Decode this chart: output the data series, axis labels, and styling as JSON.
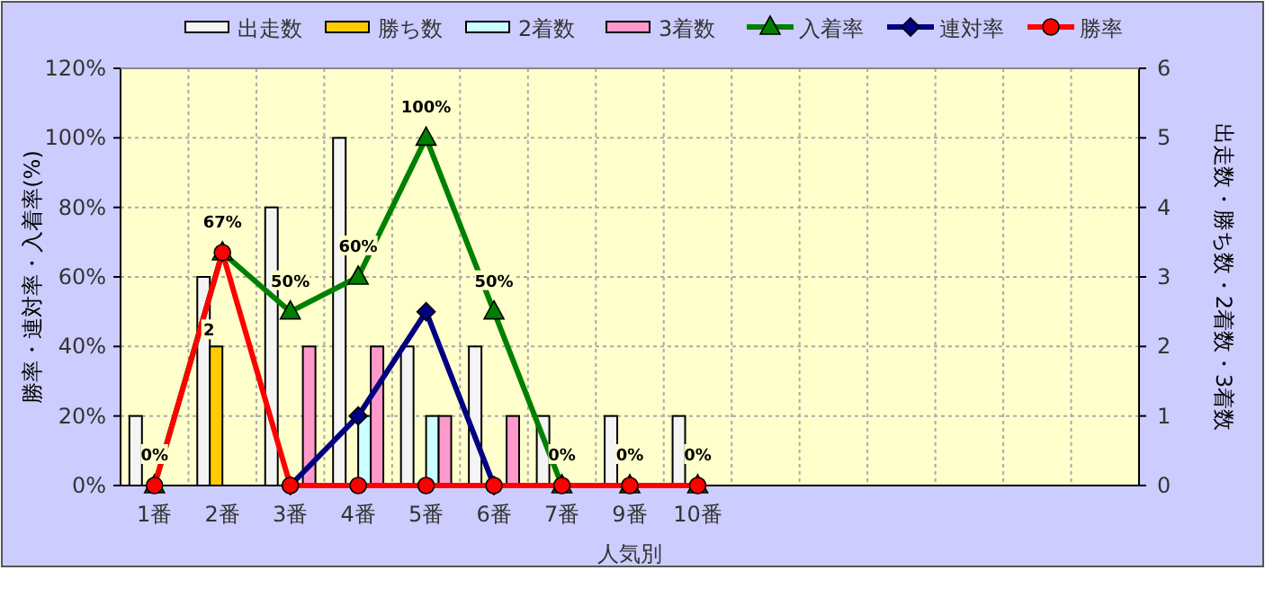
{
  "chart_data": {
    "type": "bar",
    "categories": [
      "1番",
      "2番",
      "3番",
      "4番",
      "5番",
      "6番",
      "7番",
      "9番",
      "10番",
      null,
      null,
      null,
      null,
      null,
      null
    ],
    "xlabel": "人気別",
    "ylabel": "勝率・連対率・入着率(%)",
    "y2label": "出走数・勝ち数・2着数・3着数",
    "ylim": [
      0,
      120
    ],
    "yticks": [
      {
        "value": 0,
        "label": "0%"
      },
      {
        "value": 20,
        "label": "20%"
      },
      {
        "value": 40,
        "label": "40%"
      },
      {
        "value": 60,
        "label": "60%"
      },
      {
        "value": 80,
        "label": "80%"
      },
      {
        "value": 100,
        "label": "100%"
      },
      {
        "value": 120,
        "label": "120%"
      }
    ],
    "y2lim": [
      0,
      6
    ],
    "y2ticks": [
      0,
      1,
      2,
      3,
      4,
      5,
      6
    ],
    "grid": true,
    "legend": "top",
    "series": [
      {
        "name": "出走数",
        "type": "bar",
        "axis": "y2",
        "color": "#f4f4f4",
        "values": [
          1,
          3,
          4,
          5,
          2,
          2,
          1,
          1,
          1,
          null,
          null,
          null,
          null,
          null,
          null
        ]
      },
      {
        "name": "勝ち数",
        "type": "bar",
        "axis": "y2",
        "color": "#ffcc00",
        "values": [
          0,
          2,
          0,
          0,
          0,
          0,
          0,
          0,
          0,
          null,
          null,
          null,
          null,
          null,
          null
        ],
        "value_labels": [
          null,
          "2",
          null,
          null,
          null,
          null,
          null,
          null,
          null,
          null,
          null,
          null,
          null,
          null,
          null
        ]
      },
      {
        "name": "2着数",
        "type": "bar",
        "axis": "y2",
        "color": "#ccffff",
        "values": [
          0,
          0,
          0,
          1,
          1,
          0,
          0,
          0,
          0,
          null,
          null,
          null,
          null,
          null,
          null
        ]
      },
      {
        "name": "3着数",
        "type": "bar",
        "axis": "y2",
        "color": "#ff99cc",
        "values": [
          0,
          0,
          2,
          2,
          1,
          1,
          0,
          0,
          0,
          null,
          null,
          null,
          null,
          null,
          null
        ]
      },
      {
        "name": "入着率",
        "type": "line",
        "marker": "triangle",
        "color": "#008000",
        "values": [
          0,
          67,
          50,
          60,
          100,
          50,
          0,
          0,
          0,
          null,
          null,
          null,
          null,
          null,
          null
        ],
        "value_labels": [
          "0%",
          "67%",
          "50%",
          "60%",
          "100%",
          "50%",
          "0%",
          "0%",
          "0%",
          null,
          null,
          null,
          null,
          null,
          null
        ]
      },
      {
        "name": "連対率",
        "type": "line",
        "marker": "diamond",
        "color": "#000080",
        "values": [
          null,
          null,
          0,
          20,
          50,
          0,
          null,
          null,
          null,
          null,
          null,
          null,
          null,
          null,
          null
        ]
      },
      {
        "name": "勝率",
        "type": "line",
        "marker": "circle",
        "color": "#ff0000",
        "values": [
          0,
          67,
          0,
          0,
          0,
          0,
          0,
          0,
          0,
          null,
          null,
          null,
          null,
          null,
          null
        ]
      }
    ]
  }
}
